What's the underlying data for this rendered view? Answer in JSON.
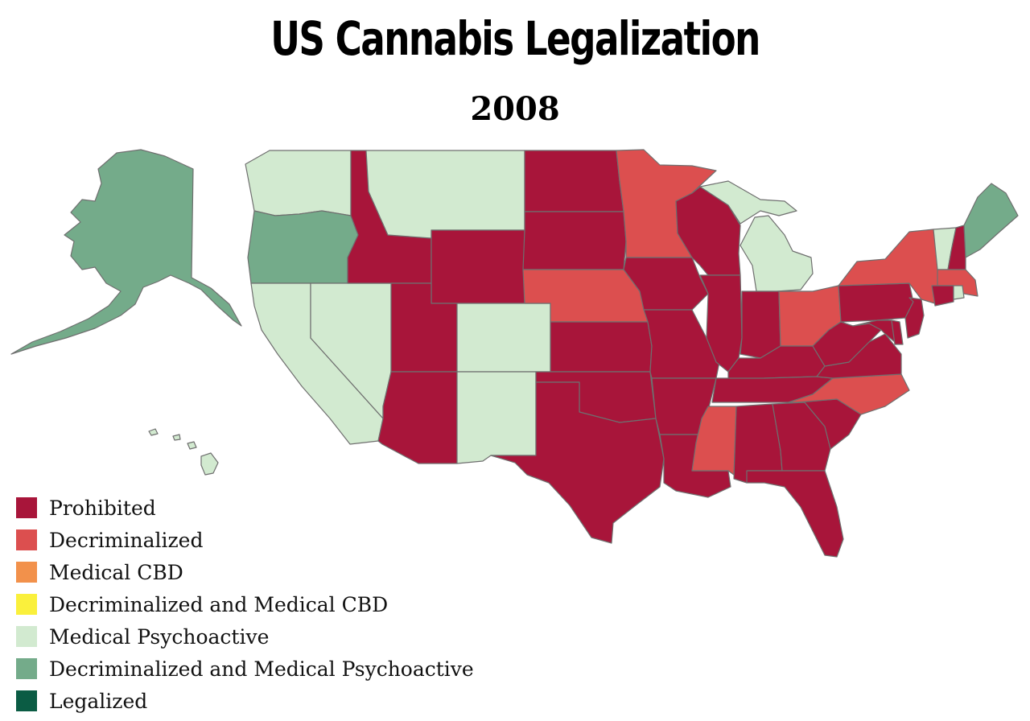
{
  "title": "US Cannabis Legalization",
  "subtitle": "2008",
  "legend": [
    {
      "label": "Prohibited",
      "color": "#a8153a"
    },
    {
      "label": "Decriminalized",
      "color": "#dc4f4f"
    },
    {
      "label": "Medical CBD",
      "color": "#f2914b"
    },
    {
      "label": "Decriminalized and Medical CBD",
      "color": "#faf03c"
    },
    {
      "label": "Medical Psychoactive",
      "color": "#d2ead0"
    },
    {
      "label": "Decriminalized and Medical Psychoactive",
      "color": "#74ab8a"
    },
    {
      "label": "Legalized",
      "color": "#0b5c44"
    }
  ],
  "states": {
    "alaska": "Decriminalized and Medical Psychoactive",
    "hawaii": "Medical Psychoactive",
    "washington": "Medical Psychoactive",
    "oregon": "Decriminalized and Medical Psychoactive",
    "california": "Medical Psychoactive",
    "nevada": "Medical Psychoactive",
    "idaho": "Prohibited",
    "montana": "Medical Psychoactive",
    "wyoming": "Prohibited",
    "utah": "Prohibited",
    "colorado": "Medical Psychoactive",
    "arizona": "Prohibited",
    "new-mexico": "Medical Psychoactive",
    "north-dakota": "Prohibited",
    "south-dakota": "Prohibited",
    "nebraska": "Decriminalized",
    "kansas": "Prohibited",
    "oklahoma": "Prohibited",
    "texas": "Prohibited",
    "minnesota": "Decriminalized",
    "iowa": "Prohibited",
    "missouri": "Prohibited",
    "arkansas": "Prohibited",
    "louisiana": "Prohibited",
    "wisconsin": "Prohibited",
    "illinois": "Prohibited",
    "michigan": "Medical Psychoactive",
    "indiana": "Prohibited",
    "ohio": "Decriminalized",
    "kentucky": "Prohibited",
    "tennessee": "Prohibited",
    "mississippi": "Decriminalized",
    "alabama": "Prohibited",
    "georgia": "Prohibited",
    "florida": "Prohibited",
    "south-carolina": "Prohibited",
    "north-carolina": "Decriminalized",
    "virginia": "Prohibited",
    "west-virginia": "Prohibited",
    "pennsylvania": "Prohibited",
    "new-york": "Decriminalized",
    "vermont": "Medical Psychoactive",
    "new-hampshire": "Prohibited",
    "maine": "Decriminalized and Medical Psychoactive",
    "massachusetts": "Decriminalized",
    "connecticut": "Prohibited",
    "rhode-island": "Medical Psychoactive",
    "new-jersey": "Prohibited",
    "delaware": "Prohibited",
    "maryland": "Prohibited"
  }
}
